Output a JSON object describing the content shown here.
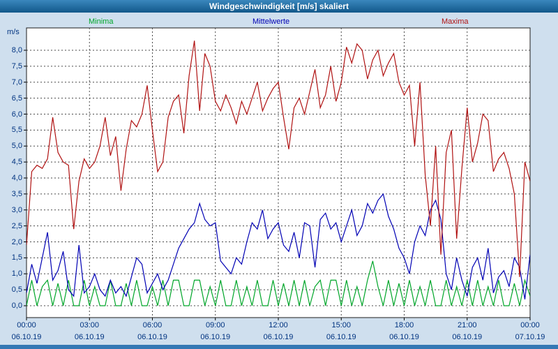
{
  "window": {
    "title": "Windgeschwindigkeit [m/s] skaliert"
  },
  "legend": [
    {
      "label": "Minima",
      "color": "#00a629"
    },
    {
      "label": "Mittelwerte",
      "color": "#0000b4"
    },
    {
      "label": "Maxima",
      "color": "#b01212"
    }
  ],
  "axes": {
    "y_unit": "m/s",
    "y_tick_labels": [
      "0,0",
      "0,5",
      "1,0",
      "1,5",
      "2,0",
      "2,5",
      "3,0",
      "3,5",
      "4,0",
      "4,5",
      "5,0",
      "5,5",
      "6,0",
      "6,5",
      "7,0",
      "7,5",
      "8,0"
    ],
    "y_tick_values": [
      0,
      0.5,
      1,
      1.5,
      2,
      2.5,
      3,
      3.5,
      4,
      4.5,
      5,
      5.5,
      6,
      6.5,
      7,
      7.5,
      8
    ],
    "x_tick_labels": [
      "00:00",
      "03:00",
      "06:00",
      "09:00",
      "12:00",
      "15:00",
      "18:00",
      "21:00",
      "00:00"
    ],
    "x_tick_hours": [
      0,
      3,
      6,
      9,
      12,
      15,
      18,
      21,
      24
    ],
    "x_date_labels": [
      "06.10.19",
      "06.10.19",
      "06.10.19",
      "06.10.19",
      "06.10.19",
      "06.10.19",
      "06.10.19",
      "06.10.19",
      "07.10.19"
    ]
  },
  "chart_data": {
    "type": "line",
    "title": "Windgeschwindigkeit [m/s] skaliert",
    "ylabel": "m/s",
    "xlabel": "",
    "x_start": "06.10.19 00:00",
    "x_end": "07.10.19 00:00",
    "x_step_minutes": 15,
    "ylim": [
      0,
      8.7
    ],
    "grid": true,
    "legend_position": "top",
    "series": [
      {
        "name": "Minima",
        "color": "#00a629",
        "values": [
          0.0,
          0.8,
          0.0,
          0.6,
          0.8,
          0.0,
          0.7,
          0.0,
          0.8,
          0.0,
          0.0,
          0.8,
          0.0,
          0.6,
          0.0,
          0.0,
          0.8,
          0.0,
          0.0,
          0.7,
          0.0,
          0.8,
          0.0,
          0.0,
          0.6,
          0.0,
          0.8,
          0.0,
          0.8,
          0.8,
          0.0,
          0.0,
          0.8,
          0.8,
          0.0,
          0.6,
          0.0,
          0.8,
          0.0,
          0.0,
          0.8,
          0.0,
          0.6,
          0.0,
          0.8,
          0.0,
          0.0,
          0.8,
          0.0,
          0.7,
          0.0,
          0.8,
          0.0,
          0.8,
          0.0,
          0.6,
          0.8,
          0.0,
          0.8,
          0.8,
          0.0,
          0.8,
          0.0,
          0.6,
          0.0,
          0.8,
          1.4,
          0.6,
          0.0,
          0.8,
          0.0,
          0.7,
          0.0,
          0.8,
          0.0,
          0.6,
          0.0,
          0.8,
          0.0,
          0.0,
          0.8,
          0.0,
          0.6,
          0.0,
          0.8,
          0.0,
          0.8,
          0.0,
          0.6,
          0.0,
          0.8,
          0.0,
          0.0,
          0.7,
          0.0,
          0.8,
          0.3
        ]
      },
      {
        "name": "Mittelwerte",
        "color": "#0000b4",
        "values": [
          0.4,
          1.3,
          0.7,
          1.5,
          2.3,
          0.8,
          1.1,
          1.7,
          0.5,
          0.3,
          1.9,
          0.4,
          0.6,
          1.0,
          0.5,
          0.3,
          0.8,
          0.4,
          0.6,
          0.3,
          0.9,
          1.5,
          1.3,
          0.4,
          0.7,
          1.0,
          0.5,
          0.8,
          1.3,
          1.8,
          2.1,
          2.4,
          2.6,
          3.2,
          2.7,
          2.5,
          2.6,
          1.4,
          1.2,
          1.0,
          1.5,
          1.3,
          2.0,
          2.6,
          2.4,
          3.0,
          2.1,
          2.4,
          2.6,
          1.9,
          1.7,
          2.3,
          1.5,
          2.6,
          2.5,
          1.2,
          2.7,
          2.9,
          2.4,
          2.6,
          2.0,
          2.5,
          3.0,
          2.2,
          2.5,
          3.2,
          2.9,
          3.3,
          3.5,
          2.8,
          2.4,
          1.8,
          1.5,
          1.0,
          2.0,
          2.5,
          2.2,
          3.0,
          3.3,
          2.7,
          1.0,
          0.5,
          1.5,
          0.8,
          0.3,
          1.2,
          1.5,
          0.8,
          1.8,
          0.4,
          0.9,
          1.1,
          0.6,
          1.5,
          1.2,
          0.2,
          1.6
        ]
      },
      {
        "name": "Maxima",
        "color": "#b01212",
        "values": [
          1.9,
          4.2,
          4.4,
          4.3,
          4.6,
          5.9,
          4.8,
          4.5,
          4.4,
          2.4,
          3.9,
          4.6,
          4.3,
          4.5,
          5.0,
          5.9,
          4.7,
          5.3,
          3.6,
          4.9,
          5.8,
          5.6,
          6.0,
          6.9,
          5.5,
          4.2,
          4.5,
          5.9,
          6.4,
          6.6,
          5.4,
          7.2,
          8.3,
          6.1,
          7.9,
          7.5,
          6.4,
          6.1,
          6.6,
          6.2,
          5.7,
          6.4,
          6.0,
          6.5,
          7.0,
          6.1,
          6.5,
          6.8,
          7.0,
          5.9,
          4.9,
          6.2,
          6.5,
          6.0,
          6.7,
          7.4,
          6.2,
          6.6,
          7.5,
          6.4,
          7.0,
          8.1,
          7.6,
          8.2,
          8.0,
          7.1,
          7.7,
          8.0,
          7.2,
          7.6,
          7.9,
          7.0,
          6.6,
          6.9,
          5.0,
          7.0,
          4.1,
          2.5,
          5.0,
          1.6,
          4.8,
          5.5,
          2.1,
          4.3,
          6.2,
          4.5,
          5.1,
          6.0,
          5.8,
          4.2,
          4.6,
          4.8,
          4.3,
          3.5,
          0.9,
          4.5,
          3.9
        ]
      }
    ]
  }
}
